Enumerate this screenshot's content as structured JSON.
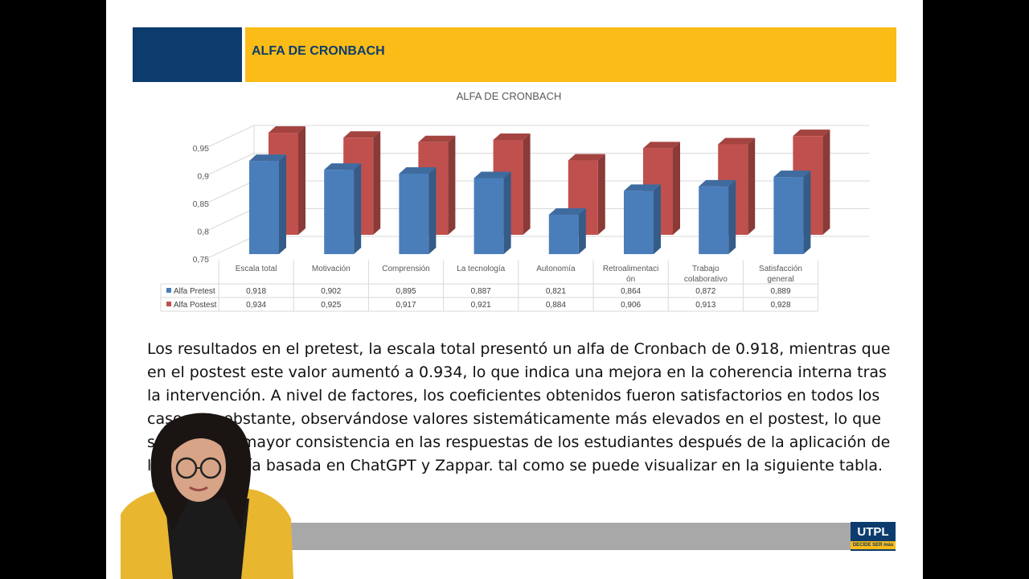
{
  "header": {
    "title": "ALFA DE CRONBACH"
  },
  "chart_data": {
    "type": "bar",
    "title": "ALFA DE CRONBACH",
    "categories": [
      "Escala total",
      "Motivación",
      "Comprensión",
      "La tecnología",
      "Autonomía",
      "Retroalimentación",
      "Trabajo colaborativo",
      "Satisfacción general"
    ],
    "category_lines": [
      [
        "Escala total"
      ],
      [
        "Motivación"
      ],
      [
        "Comprensión"
      ],
      [
        "La tecnología"
      ],
      [
        "Autonomía"
      ],
      [
        "Retroalimentaci",
        "ón"
      ],
      [
        "Trabajo",
        "colaborativo"
      ],
      [
        "Satisfacción",
        "general"
      ]
    ],
    "series": [
      {
        "name": "Alfa Pretest",
        "values": [
          0.918,
          0.902,
          0.895,
          0.887,
          0.821,
          0.864,
          0.872,
          0.889
        ],
        "labels": [
          "0,918",
          "0,902",
          "0,895",
          "0,887",
          "0,821",
          "0,864",
          "0,872",
          "0,889"
        ],
        "color": "#4a7ebb"
      },
      {
        "name": "Alfa Postest",
        "values": [
          0.934,
          0.925,
          0.917,
          0.921,
          0.884,
          0.906,
          0.913,
          0.928
        ],
        "labels": [
          "0,934",
          "0,925",
          "0,917",
          "0,921",
          "0,884",
          "0,906",
          "0,913",
          "0,928"
        ],
        "color": "#c0504d"
      }
    ],
    "y_ticks": [
      "0,75",
      "0,8",
      "0,85",
      "0,9",
      "0,95"
    ],
    "ylim": [
      0.75,
      0.95
    ],
    "grid": true,
    "legend": "data-table",
    "three_d": true
  },
  "paragraph": "Los resultados en el pretest, la escala total presentó un alfa de Cronbach de 0.918, mientras que en el postest este valor aumentó a 0.934, lo que indica una mejora en la coherencia interna tras la intervención. A nivel de factores, los coeficientes obtenidos fueron satisfactorios en todos los casos, no obstante, observándose valores sistemáticamente más elevados en el postest, lo que sugiere una mayor consistencia en las respuestas de los estudiantes después de la aplicación de la metodología basada en ChatGPT y Zappar. tal como se puede visualizar en la siguiente tabla.",
  "logo": {
    "main": "UTPL",
    "sub": "DECIDE SER más"
  },
  "colors": {
    "navy": "#0c3c6e",
    "yellow": "#fbbc17",
    "footer_gray": "#a8a8a8"
  }
}
